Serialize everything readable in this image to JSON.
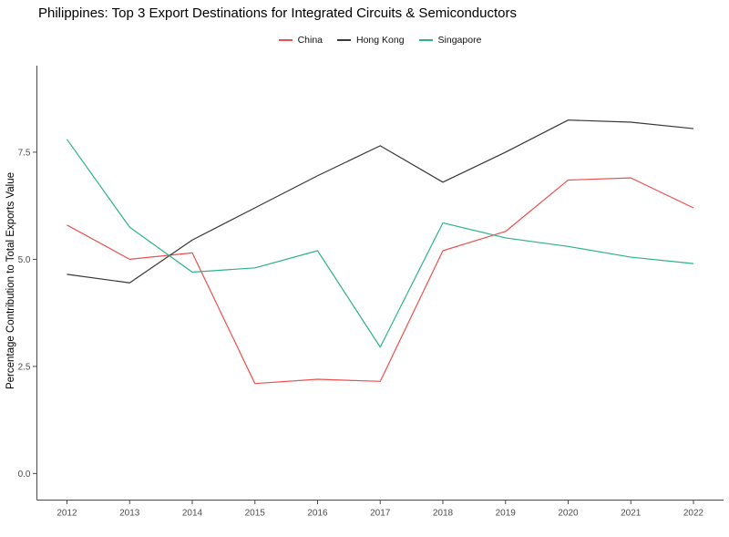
{
  "chart_data": {
    "type": "line",
    "title": "Philippines: Top 3 Export Destinations for Integrated Circuits & Semiconductors",
    "xlabel": "",
    "ylabel": "Percentage Contribution to Total Exports Value",
    "x": [
      2012,
      2013,
      2014,
      2015,
      2016,
      2017,
      2018,
      2019,
      2020,
      2021,
      2022
    ],
    "series": [
      {
        "name": "China",
        "color": "#ec4f4f",
        "values": [
          5.8,
          5.0,
          5.15,
          2.1,
          2.2,
          2.15,
          5.2,
          5.65,
          6.85,
          6.9,
          6.2
        ]
      },
      {
        "name": "Hong Kong",
        "color": "#383838",
        "values": [
          4.65,
          4.45,
          5.45,
          6.2,
          6.95,
          7.65,
          6.8,
          7.5,
          8.25,
          8.2,
          8.05
        ]
      },
      {
        "name": "Singapore",
        "color": "#2eb28c",
        "values": [
          7.8,
          5.75,
          4.7,
          4.8,
          5.2,
          2.95,
          5.85,
          5.5,
          5.3,
          5.05,
          4.9
        ]
      }
    ],
    "yticks": [
      0.0,
      2.5,
      5.0,
      7.5
    ],
    "ylim": [
      -0.62,
      9.52
    ],
    "xlim": [
      2011.52,
      2022.48
    ],
    "grid": false,
    "legend_position": "top-center",
    "axis_color": "#4a4a4a",
    "tick_label_color": "#4d4d4d",
    "background_color": "#ffffff"
  }
}
